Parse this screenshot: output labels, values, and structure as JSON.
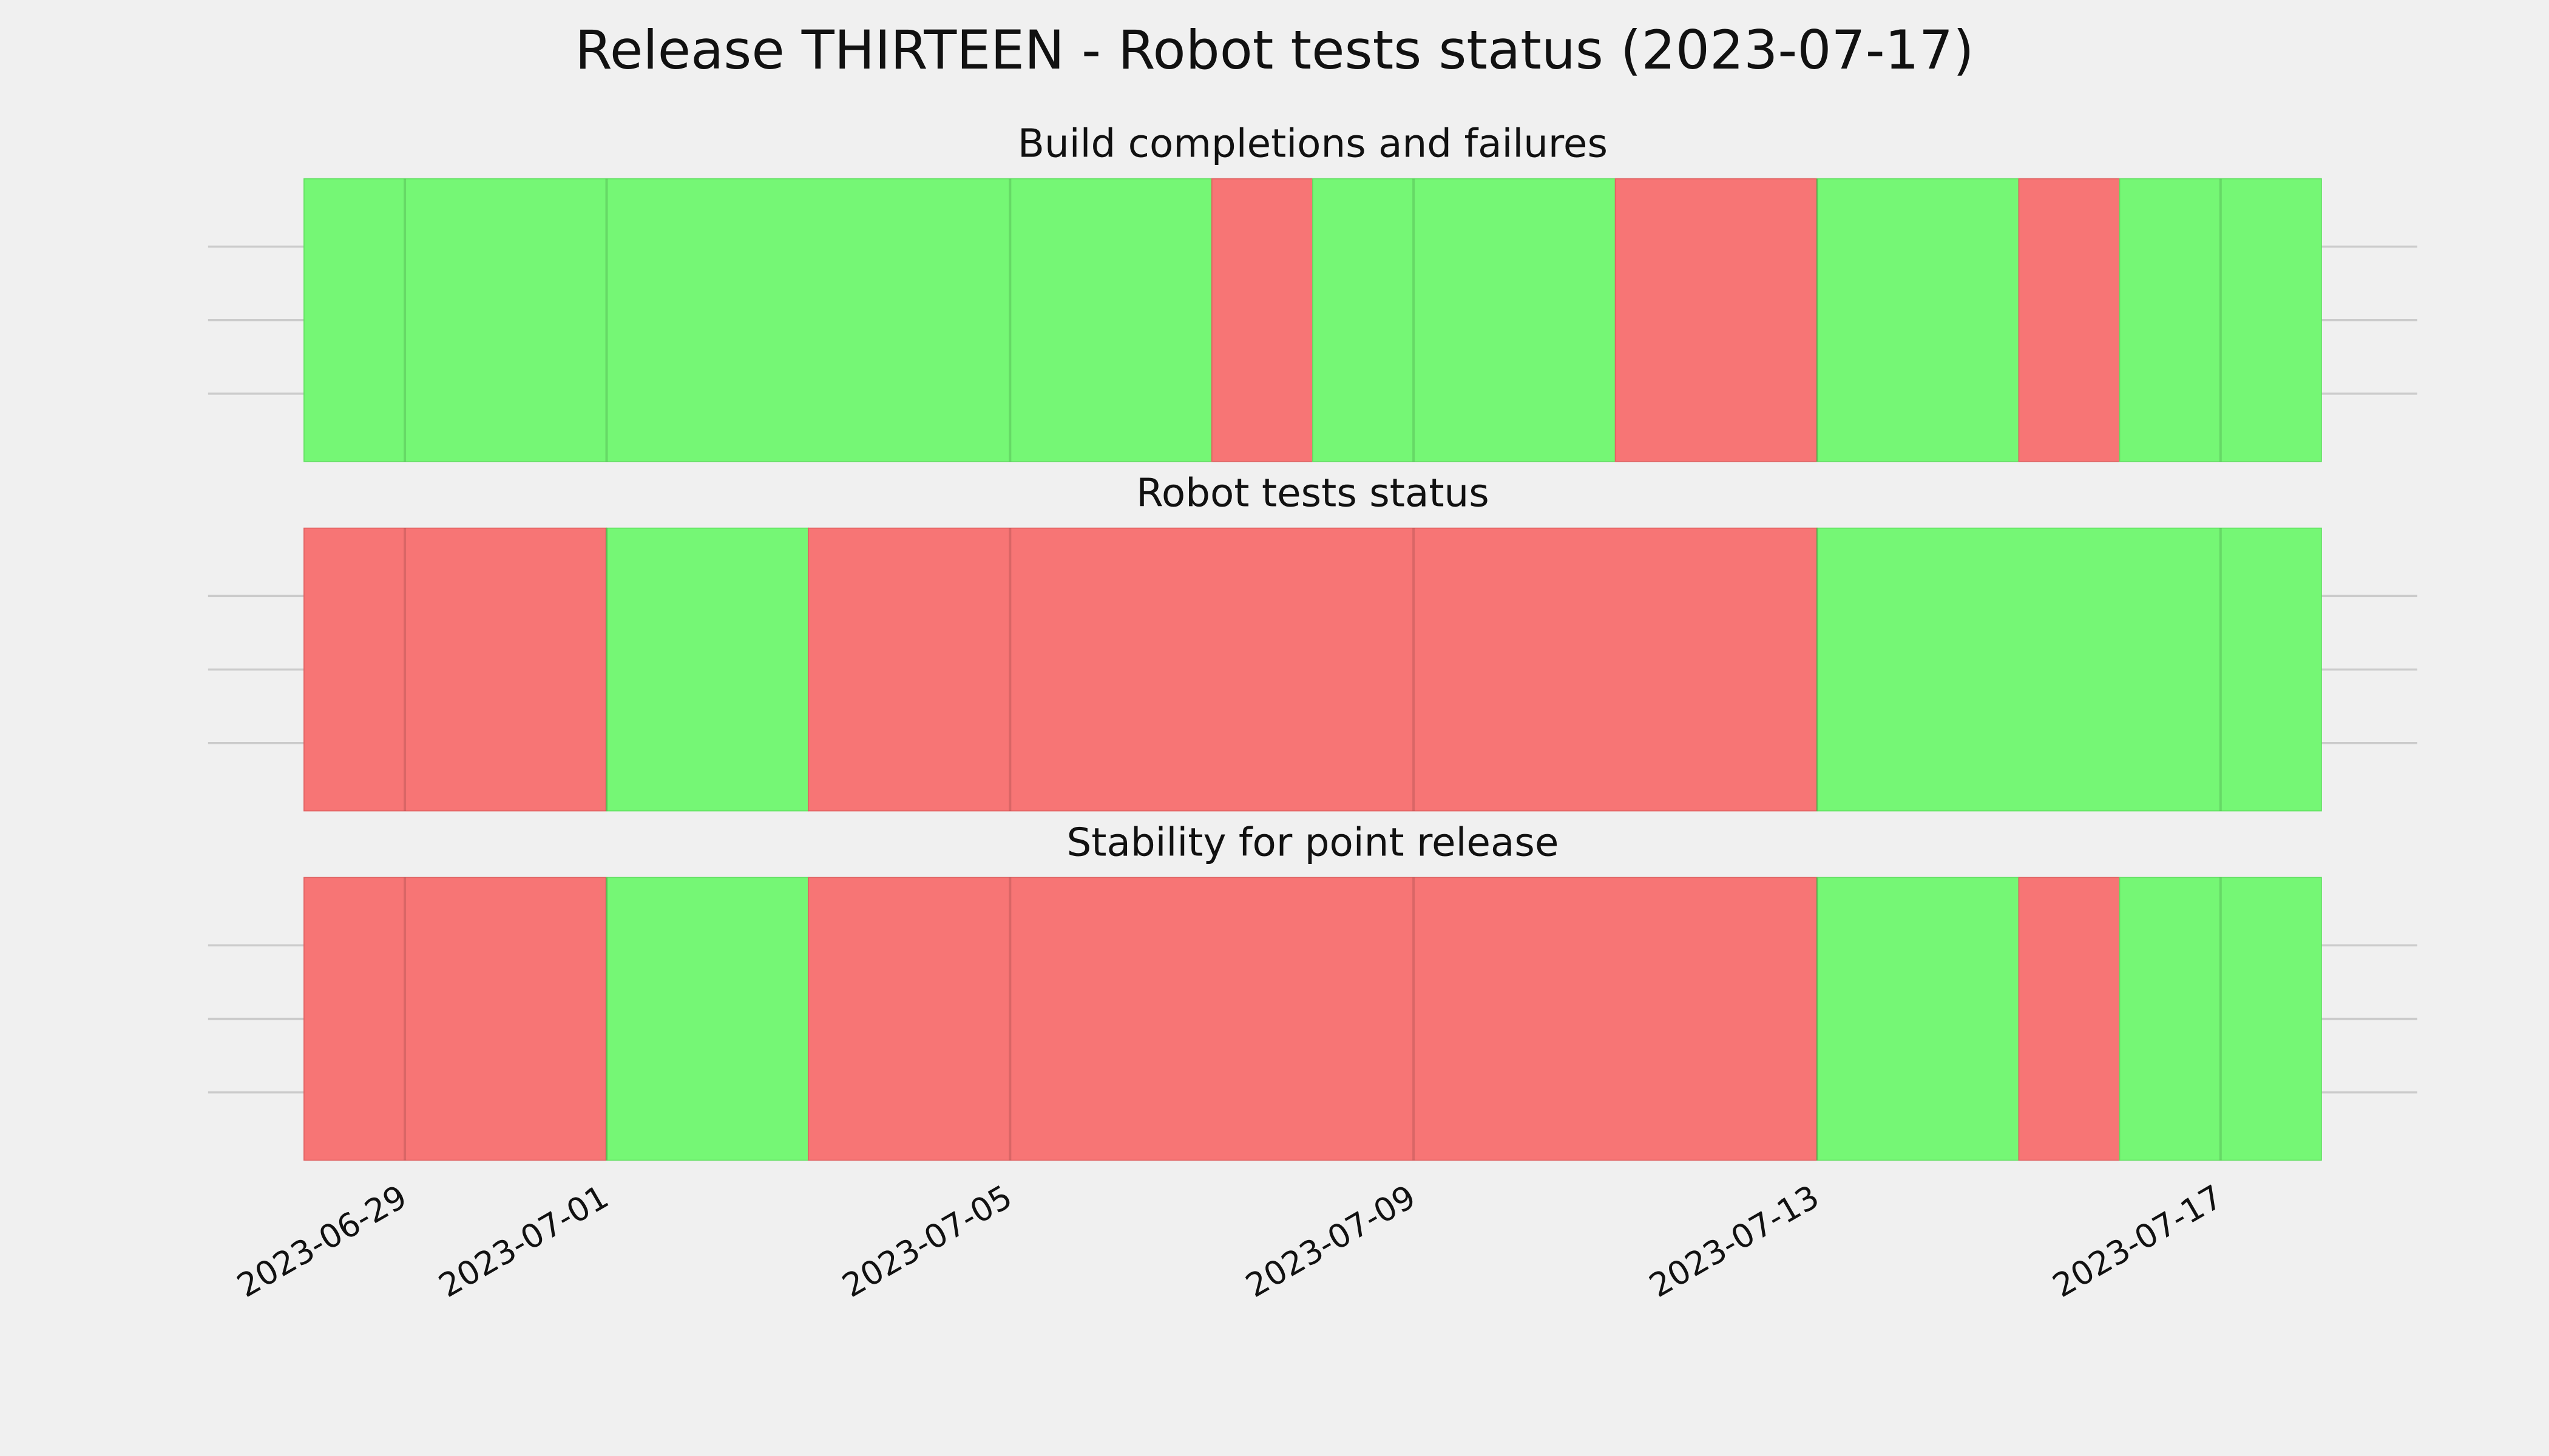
{
  "title": "Release THIRTEEN - Robot tests status (2023-07-17)",
  "chart_data": [
    {
      "type": "span",
      "title": "Build completions and failures",
      "xlim": [
        "2023-06-28",
        "2023-07-18"
      ],
      "segments": [
        {
          "start": "2023-06-28",
          "end": "2023-07-07",
          "color": "#75f775"
        },
        {
          "start": "2023-07-07",
          "end": "2023-07-08",
          "color": "#f77575"
        },
        {
          "start": "2023-07-08",
          "end": "2023-07-11",
          "color": "#75f775"
        },
        {
          "start": "2023-07-11",
          "end": "2023-07-13",
          "color": "#f77575"
        },
        {
          "start": "2023-07-13",
          "end": "2023-07-15",
          "color": "#75f775"
        },
        {
          "start": "2023-07-15",
          "end": "2023-07-16",
          "color": "#f77575"
        },
        {
          "start": "2023-07-16",
          "end": "2023-07-18",
          "color": "#75f775"
        }
      ]
    },
    {
      "type": "span",
      "title": "Robot tests status",
      "xlim": [
        "2023-06-28",
        "2023-07-18"
      ],
      "segments": [
        {
          "start": "2023-06-28",
          "end": "2023-07-01",
          "color": "#f77575"
        },
        {
          "start": "2023-07-01",
          "end": "2023-07-03",
          "color": "#75f775"
        },
        {
          "start": "2023-07-03",
          "end": "2023-07-13",
          "color": "#f77575"
        },
        {
          "start": "2023-07-13",
          "end": "2023-07-18",
          "color": "#75f775"
        }
      ]
    },
    {
      "type": "span",
      "title": "Stability for point release",
      "xlim": [
        "2023-06-28",
        "2023-07-18"
      ],
      "xticks": [
        "2023-06-29",
        "2023-07-01",
        "2023-07-05",
        "2023-07-09",
        "2023-07-13",
        "2023-07-17"
      ],
      "segments": [
        {
          "start": "2023-06-28",
          "end": "2023-07-01",
          "color": "#f77575"
        },
        {
          "start": "2023-07-01",
          "end": "2023-07-03",
          "color": "#75f775"
        },
        {
          "start": "2023-07-03",
          "end": "2023-07-13",
          "color": "#f77575"
        },
        {
          "start": "2023-07-13",
          "end": "2023-07-15",
          "color": "#75f775"
        },
        {
          "start": "2023-07-15",
          "end": "2023-07-16",
          "color": "#f77575"
        },
        {
          "start": "2023-07-16",
          "end": "2023-07-18",
          "color": "#75f775"
        }
      ]
    }
  ]
}
